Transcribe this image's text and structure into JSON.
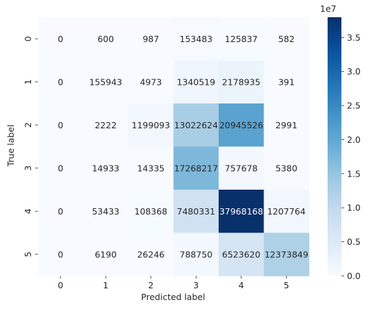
{
  "chart_data": {
    "type": "heatmap",
    "xlabel": "Predicted label",
    "ylabel": "True label",
    "x_categories": [
      "0",
      "1",
      "2",
      "3",
      "4",
      "5"
    ],
    "y_categories": [
      "0",
      "1",
      "2",
      "3",
      "4",
      "5"
    ],
    "values": [
      [
        0,
        600,
        987,
        153483,
        125837,
        582
      ],
      [
        0,
        155943,
        4973,
        1340519,
        2178935,
        391
      ],
      [
        0,
        2222,
        1199093,
        13022624,
        20945526,
        2991
      ],
      [
        0,
        14933,
        14335,
        17268217,
        757678,
        5380
      ],
      [
        0,
        53433,
        108368,
        7480331,
        37968168,
        1207764
      ],
      [
        0,
        6190,
        26246,
        788750,
        6523620,
        12373849
      ]
    ],
    "value_labels": [
      [
        "0",
        "600",
        "987",
        "153483",
        "125837",
        "582"
      ],
      [
        "0",
        "155943",
        "4973",
        "1340519",
        "2178935",
        "391"
      ],
      [
        "0",
        "2222",
        "1199093",
        "13022624",
        "20945526",
        "2991"
      ],
      [
        "0",
        "14933",
        "14335",
        "17268217",
        "757678",
        "5380"
      ],
      [
        "0",
        "53433",
        "108368",
        "7480331",
        "37968168",
        "1207764"
      ],
      [
        "0",
        "6190",
        "26246",
        "788750",
        "6523620",
        "12373849"
      ]
    ],
    "colormap": "Blues",
    "colorbar": {
      "scale_label": "1e7",
      "ticks": [
        0,
        5000000,
        10000000,
        15000000,
        20000000,
        25000000,
        30000000,
        35000000
      ],
      "tick_labels": [
        "0.0",
        "0.5",
        "1.0",
        "1.5",
        "2.0",
        "2.5",
        "3.0",
        "3.5"
      ],
      "range": [
        0,
        37968168
      ]
    }
  }
}
